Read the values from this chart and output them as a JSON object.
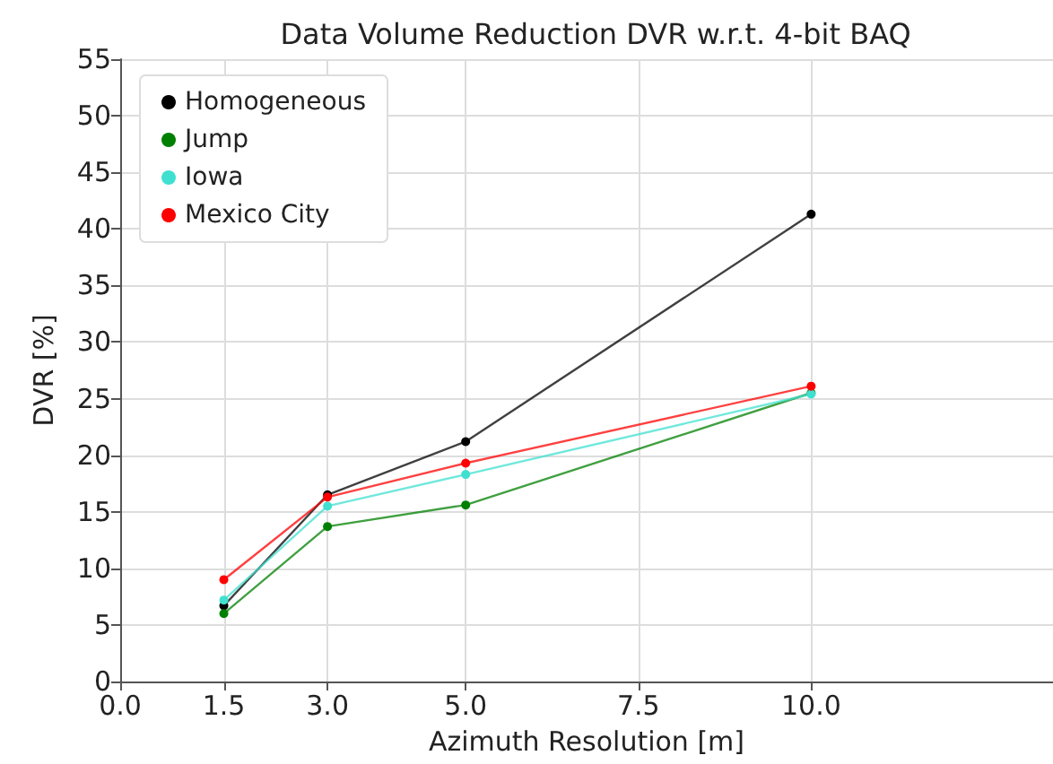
{
  "chart_data": {
    "type": "line",
    "title": "Data Volume Reduction DVR w.r.t. 4-bit BAQ",
    "xlabel": "Azimuth Resolution [m]",
    "ylabel": "DVR [%]",
    "x": [
      1.5,
      3.0,
      5.0,
      10.0
    ],
    "series": [
      {
        "name": "Homogeneous",
        "color": "#000000",
        "values": [
          6.7,
          16.5,
          21.2,
          41.3
        ]
      },
      {
        "name": "Jump",
        "color": "#008000",
        "values": [
          6.0,
          13.7,
          15.6,
          25.5
        ]
      },
      {
        "name": "Iowa",
        "color": "#40e0d0",
        "values": [
          7.2,
          15.5,
          18.3,
          25.4
        ]
      },
      {
        "name": "Mexico City",
        "color": "#ff0000",
        "values": [
          9.0,
          16.3,
          19.3,
          26.1
        ]
      }
    ],
    "xlim": [
      0,
      13.5
    ],
    "xticks": [
      {
        "value": 0,
        "label": "0.0"
      },
      {
        "value": 1.5,
        "label": "1.5"
      },
      {
        "value": 3,
        "label": "3.0"
      },
      {
        "value": 5,
        "label": "5.0"
      },
      {
        "value": 7.5,
        "label": "7.5"
      },
      {
        "value": 10,
        "label": "10.0"
      }
    ],
    "ylim": [
      0,
      55
    ],
    "yticks": [
      0,
      5,
      10,
      15,
      20,
      25,
      30,
      35,
      40,
      45,
      50,
      55
    ],
    "grid": true,
    "legend": "top left",
    "marker": "circle",
    "line_style": "solid"
  }
}
